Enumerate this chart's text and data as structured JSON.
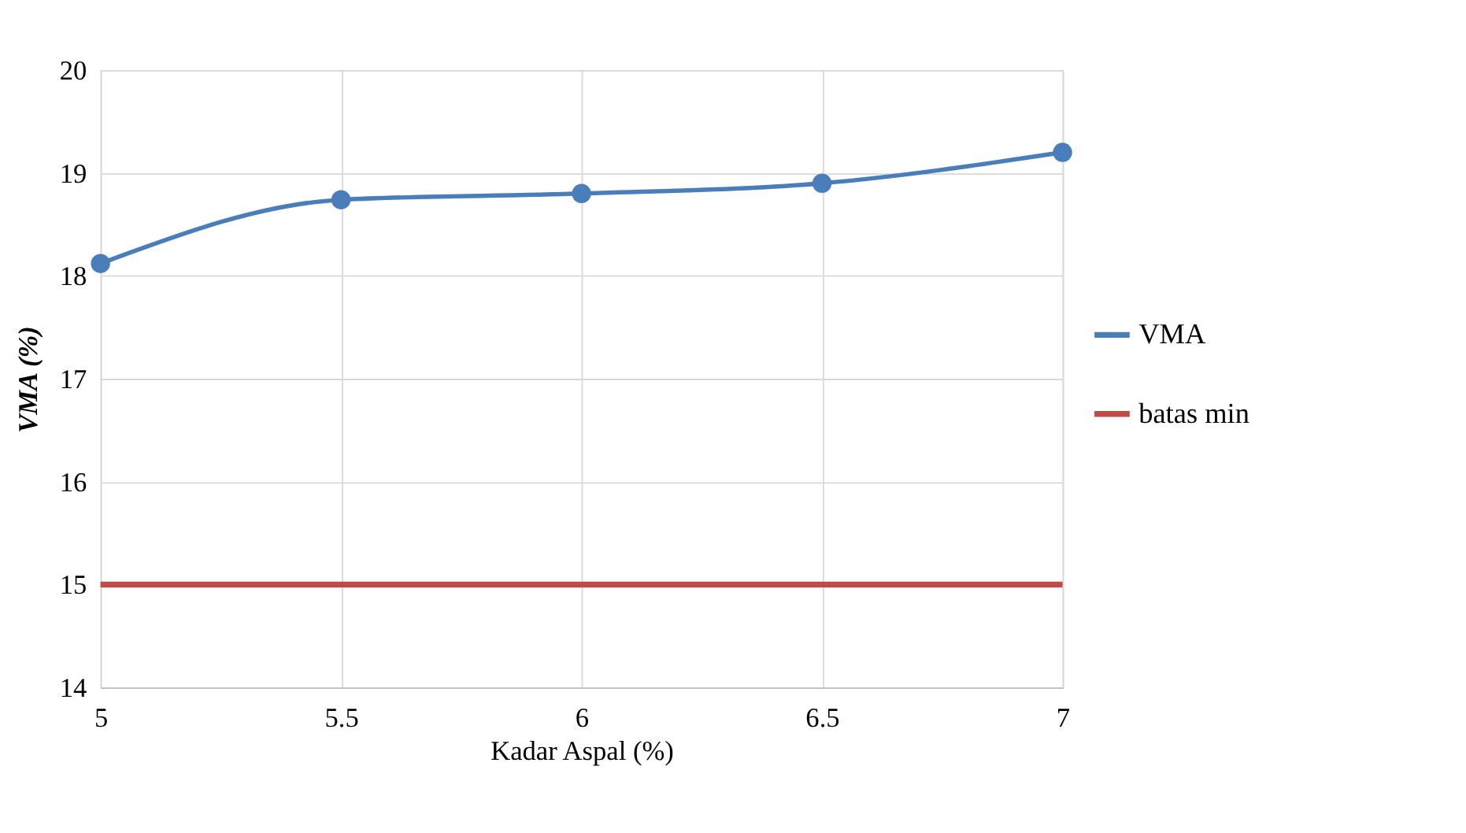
{
  "chart_data": {
    "type": "line",
    "xlabel": "Kadar Aspal (%)",
    "ylabel": "VMA (%)",
    "x": [
      5,
      5.5,
      6,
      6.5,
      7
    ],
    "series": [
      {
        "name": "VMA",
        "color": "#4a7ebb",
        "values": [
          18.12,
          18.74,
          18.8,
          18.9,
          19.2
        ],
        "marker": "circle"
      },
      {
        "name": "batas min",
        "color": "#be4b48",
        "values": [
          15,
          15,
          15,
          15,
          15
        ],
        "marker": "none"
      }
    ],
    "xlim": [
      5,
      7
    ],
    "xticks": [
      5,
      5.5,
      6,
      6.5,
      7
    ],
    "ylim": [
      14,
      20
    ],
    "yticks": [
      14,
      15,
      16,
      17,
      18,
      19,
      20
    ],
    "grid": true,
    "legend": "right",
    "line_style": "solid"
  }
}
